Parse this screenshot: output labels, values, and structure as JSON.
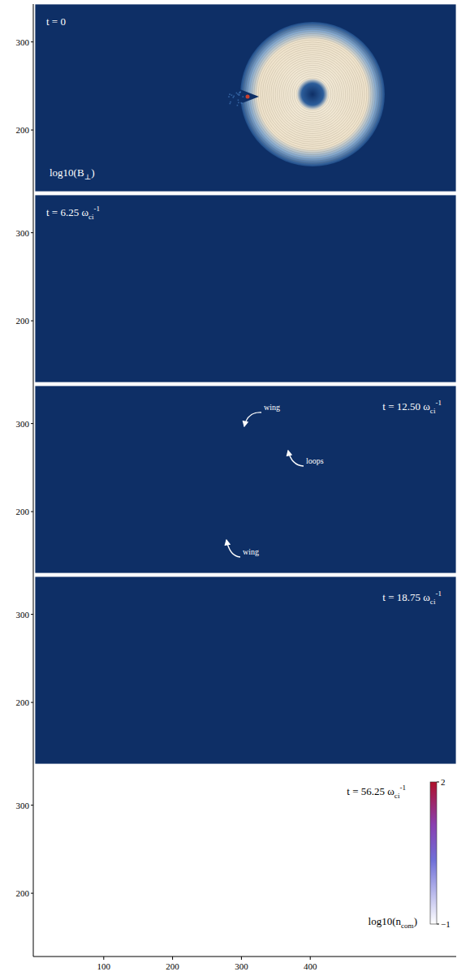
{
  "chart_data": {
    "type": "image_panels",
    "xlim": [
      0,
      612
    ],
    "xticks": [
      100,
      200,
      300,
      400
    ],
    "ylim": [
      130,
      343
    ],
    "yticks": [
      200,
      300
    ],
    "panels": [
      {
        "time_label": {
          "text": "t = 0"
        },
        "quantity_label": {
          "text": "log10(B",
          "sub": "⊥",
          "after": ")"
        }
      },
      {
        "time_label": {
          "text": "t = 6.25 ω",
          "sub": "ci",
          "sup": "-1"
        }
      },
      {
        "time_label": {
          "text": "t = 12.50 ω",
          "sub": "ci",
          "sup": "-1"
        },
        "annotations": [
          {
            "text": "wing"
          },
          {
            "text": "loops"
          },
          {
            "text": "wing"
          }
        ]
      },
      {
        "time_label": {
          "text": "t = 18.75 ω",
          "sub": "ci",
          "sup": "-1"
        }
      },
      {
        "time_label": {
          "text": "t = 56.25 ω",
          "sub": "ci",
          "sup": "-1"
        },
        "quantity_label": {
          "text": "log10(n",
          "sub": "com",
          "after": ")"
        },
        "colorbar": {
          "range": [
            -1,
            2
          ],
          "ticks": [
            {
              "value": -1,
              "label": "−1"
            },
            2
          ]
        }
      }
    ]
  }
}
